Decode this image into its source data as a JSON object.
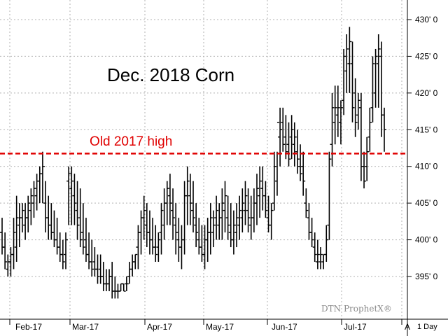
{
  "chart_data": {
    "type": "ohlc",
    "title": "Dec. 2018 Corn",
    "xlabel": "",
    "ylabel": "",
    "ylim": [
      390,
      432
    ],
    "yticks": [
      "395' 0",
      "400' 0",
      "405' 0",
      "410' 0",
      "415' 0",
      "420' 0",
      "425' 0",
      "430' 0"
    ],
    "ytick_values": [
      395,
      400,
      405,
      410,
      415,
      420,
      425,
      430
    ],
    "xticks": [
      "Feb-17",
      "Mar-17",
      "Apr-17",
      "May-17",
      "Jun-17",
      "Jul-17",
      "A"
    ],
    "period_label": "1 Day",
    "watermark": "DTN ProphetX®",
    "grid": true,
    "reference_line": {
      "label": "Old 2017 high",
      "value": 411.75,
      "color": "#e00000",
      "style": "dashed"
    },
    "colors": {
      "bars": "#000000",
      "grid": "#b0b0b0",
      "reference": "#e00000"
    },
    "bars_high": [
      403,
      401,
      398,
      399,
      403,
      406,
      405,
      405,
      405,
      406,
      407,
      408,
      409,
      410,
      412,
      408,
      406,
      405,
      404,
      403,
      401,
      400,
      401,
      410,
      410,
      409,
      408,
      407,
      405,
      403,
      401,
      400,
      399,
      398,
      398,
      397,
      396,
      396,
      397,
      395,
      394,
      394,
      394,
      395,
      397,
      398,
      398,
      402,
      404,
      406,
      405,
      404,
      403,
      402,
      401,
      405,
      407,
      408,
      409,
      407,
      405,
      403,
      402,
      408,
      410,
      409,
      408,
      405,
      403,
      402,
      402,
      403,
      405,
      404,
      406,
      405,
      407,
      408,
      406,
      405,
      404,
      405,
      406,
      407,
      408,
      407,
      406,
      407,
      409,
      410,
      410,
      408,
      406,
      405,
      412,
      412,
      418,
      418,
      417,
      416,
      417,
      416,
      415,
      413,
      412,
      407,
      405,
      403,
      401,
      400,
      399,
      398,
      402,
      412,
      420,
      421,
      421,
      419,
      426,
      428,
      429,
      427,
      422,
      420,
      420,
      412,
      414,
      418,
      425,
      426,
      428,
      427,
      418
    ],
    "bars_low": [
      398,
      396,
      395,
      395,
      396,
      397,
      399,
      401,
      400,
      401,
      402,
      403,
      404,
      405,
      405,
      401,
      400,
      400,
      399,
      398,
      397,
      396,
      396,
      402,
      402,
      402,
      400,
      399,
      398,
      397,
      396,
      395,
      395,
      394,
      394,
      393,
      393,
      393,
      392,
      392,
      392,
      393,
      393,
      393,
      394,
      395,
      396,
      396,
      398,
      400,
      399,
      398,
      398,
      397,
      397,
      398,
      400,
      402,
      402,
      400,
      398,
      397,
      396,
      398,
      402,
      402,
      401,
      399,
      398,
      397,
      396,
      397,
      398,
      399,
      400,
      400,
      400,
      401,
      400,
      399,
      398,
      399,
      400,
      401,
      402,
      401,
      400,
      401,
      402,
      403,
      404,
      403,
      401,
      400,
      404,
      406,
      410,
      412,
      411,
      410,
      411,
      410,
      409,
      408,
      406,
      403,
      400,
      399,
      397,
      396,
      396,
      396,
      397,
      400,
      410,
      413,
      414,
      413,
      417,
      420,
      420,
      416,
      414,
      415,
      408,
      407,
      408,
      412,
      416,
      418,
      418,
      414,
      412
    ],
    "bars_open": [
      401,
      399,
      396,
      397,
      398,
      399,
      402,
      403,
      402,
      403,
      404,
      405,
      406,
      408,
      409,
      405,
      403,
      402,
      401,
      400,
      399,
      398,
      398,
      408,
      407,
      406,
      404,
      403,
      401,
      400,
      398,
      397,
      397,
      396,
      396,
      395,
      394,
      394,
      395,
      393,
      393,
      393,
      394,
      394,
      395,
      396,
      397,
      399,
      401,
      403,
      402,
      401,
      400,
      399,
      399,
      401,
      402,
      405,
      406,
      404,
      402,
      400,
      399,
      400,
      406,
      406,
      404,
      402,
      400,
      399,
      398,
      400,
      401,
      401,
      403,
      402,
      403,
      404,
      403,
      401,
      400,
      401,
      402,
      403,
      404,
      404,
      402,
      403,
      405,
      406,
      407,
      406,
      403,
      402,
      405,
      408,
      414,
      416,
      414,
      413,
      414,
      413,
      412,
      410,
      410,
      405,
      403,
      401,
      399,
      397,
      397,
      397,
      398,
      402,
      413,
      416,
      417,
      416,
      419,
      423,
      424,
      424,
      420,
      417,
      418,
      410,
      410,
      414,
      418,
      420,
      424,
      425,
      417
    ],
    "bars_close": [
      399,
      397,
      397,
      398,
      401,
      403,
      403,
      404,
      403,
      405,
      406,
      407,
      408,
      409,
      410,
      403,
      402,
      401,
      400,
      399,
      398,
      397,
      400,
      409,
      408,
      405,
      402,
      400,
      399,
      398,
      397,
      396,
      396,
      395,
      395,
      394,
      394,
      395,
      393,
      393,
      393,
      394,
      393,
      394,
      396,
      397,
      398,
      401,
      403,
      404,
      401,
      400,
      399,
      398,
      400,
      404,
      405,
      407,
      405,
      403,
      401,
      399,
      400,
      406,
      408,
      405,
      403,
      401,
      399,
      398,
      400,
      401,
      403,
      402,
      404,
      403,
      405,
      406,
      402,
      400,
      402,
      403,
      404,
      405,
      406,
      403,
      403,
      405,
      407,
      408,
      406,
      404,
      402,
      404,
      410,
      416,
      415,
      413,
      412,
      411,
      415,
      414,
      411,
      409,
      408,
      404,
      401,
      400,
      398,
      398,
      398,
      398,
      400,
      411,
      418,
      418,
      418,
      418,
      425,
      426,
      427,
      418,
      416,
      419,
      410,
      408,
      412,
      416,
      424,
      425,
      426,
      417,
      415
    ]
  }
}
